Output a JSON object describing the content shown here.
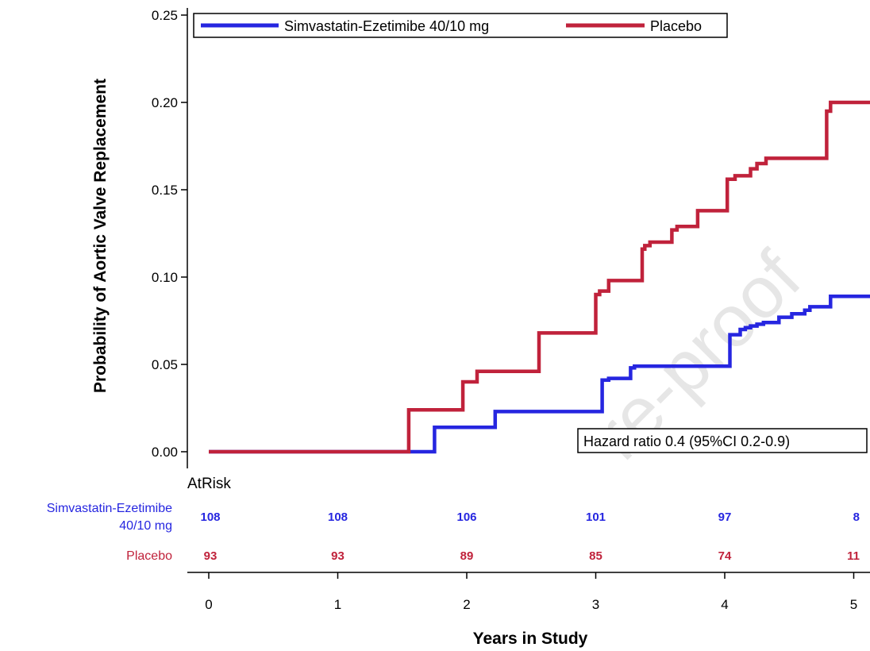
{
  "chart_data": {
    "type": "line",
    "step": true,
    "xlabel": "Years in Study",
    "ylabel": "Probability of Aortic Valve Replacement",
    "xlim": [
      -0.15,
      5.15
    ],
    "ylim": [
      -0.012,
      0.252
    ],
    "x_ticks": [
      "0",
      "1",
      "2",
      "3",
      "4",
      "5"
    ],
    "y_ticks": [
      "0.00",
      "0.05",
      "0.10",
      "0.15",
      "0.20",
      "0.25"
    ],
    "grid": false,
    "legend_position": "top",
    "series": [
      {
        "name": "Simvastatin-Ezetimibe 40/10 mg",
        "color": "#2626e0",
        "points": [
          [
            0,
            0
          ],
          [
            1.75,
            0
          ],
          [
            1.75,
            0.014
          ],
          [
            2.22,
            0.014
          ],
          [
            2.22,
            0.023
          ],
          [
            3.05,
            0.023
          ],
          [
            3.05,
            0.041
          ],
          [
            3.1,
            0.041
          ],
          [
            3.1,
            0.042
          ],
          [
            3.27,
            0.042
          ],
          [
            3.27,
            0.048
          ],
          [
            3.3,
            0.048
          ],
          [
            3.3,
            0.049
          ],
          [
            4.04,
            0.049
          ],
          [
            4.04,
            0.067
          ],
          [
            4.12,
            0.067
          ],
          [
            4.12,
            0.07
          ],
          [
            4.16,
            0.07
          ],
          [
            4.16,
            0.071
          ],
          [
            4.2,
            0.071
          ],
          [
            4.2,
            0.072
          ],
          [
            4.25,
            0.072
          ],
          [
            4.25,
            0.073
          ],
          [
            4.3,
            0.073
          ],
          [
            4.3,
            0.074
          ],
          [
            4.42,
            0.074
          ],
          [
            4.42,
            0.077
          ],
          [
            4.52,
            0.077
          ],
          [
            4.52,
            0.079
          ],
          [
            4.62,
            0.079
          ],
          [
            4.62,
            0.081
          ],
          [
            4.66,
            0.081
          ],
          [
            4.66,
            0.083
          ],
          [
            4.82,
            0.083
          ],
          [
            4.82,
            0.089
          ],
          [
            5.15,
            0.089
          ]
        ]
      },
      {
        "name": "Placebo",
        "color": "#c0223b",
        "points": [
          [
            0,
            0
          ],
          [
            1.55,
            0
          ],
          [
            1.55,
            0.024
          ],
          [
            1.97,
            0.024
          ],
          [
            1.97,
            0.04
          ],
          [
            2.08,
            0.04
          ],
          [
            2.08,
            0.046
          ],
          [
            2.56,
            0.046
          ],
          [
            2.56,
            0.068
          ],
          [
            3.0,
            0.068
          ],
          [
            3.0,
            0.09
          ],
          [
            3.03,
            0.09
          ],
          [
            3.03,
            0.092
          ],
          [
            3.1,
            0.092
          ],
          [
            3.1,
            0.098
          ],
          [
            3.36,
            0.098
          ],
          [
            3.36,
            0.116
          ],
          [
            3.38,
            0.116
          ],
          [
            3.38,
            0.118
          ],
          [
            3.42,
            0.118
          ],
          [
            3.42,
            0.12
          ],
          [
            3.59,
            0.12
          ],
          [
            3.59,
            0.127
          ],
          [
            3.63,
            0.127
          ],
          [
            3.63,
            0.129
          ],
          [
            3.79,
            0.129
          ],
          [
            3.79,
            0.138
          ],
          [
            4.02,
            0.138
          ],
          [
            4.02,
            0.156
          ],
          [
            4.08,
            0.156
          ],
          [
            4.08,
            0.158
          ],
          [
            4.2,
            0.158
          ],
          [
            4.2,
            0.162
          ],
          [
            4.25,
            0.162
          ],
          [
            4.25,
            0.165
          ],
          [
            4.32,
            0.165
          ],
          [
            4.32,
            0.168
          ],
          [
            4.79,
            0.168
          ],
          [
            4.79,
            0.195
          ],
          [
            4.82,
            0.195
          ],
          [
            4.82,
            0.2
          ],
          [
            5.15,
            0.2
          ]
        ]
      }
    ],
    "annotation": "Hazard ratio 0.4 (95%CI 0.2-0.9)",
    "at_risk": {
      "title": "AtRisk",
      "times": [
        0,
        1,
        2,
        3,
        4,
        5
      ],
      "rows": [
        {
          "label_line1": "Simvastatin-Ezetimibe",
          "label_line2": "40/10 mg",
          "color": "#2626e0",
          "counts": [
            "108",
            "108",
            "106",
            "101",
            "97",
            "8"
          ]
        },
        {
          "label_line1": "Placebo",
          "label_line2": "",
          "color": "#c0223b",
          "counts": [
            "93",
            "93",
            "89",
            "85",
            "74",
            "11"
          ]
        }
      ]
    },
    "watermark": "re-proof"
  }
}
